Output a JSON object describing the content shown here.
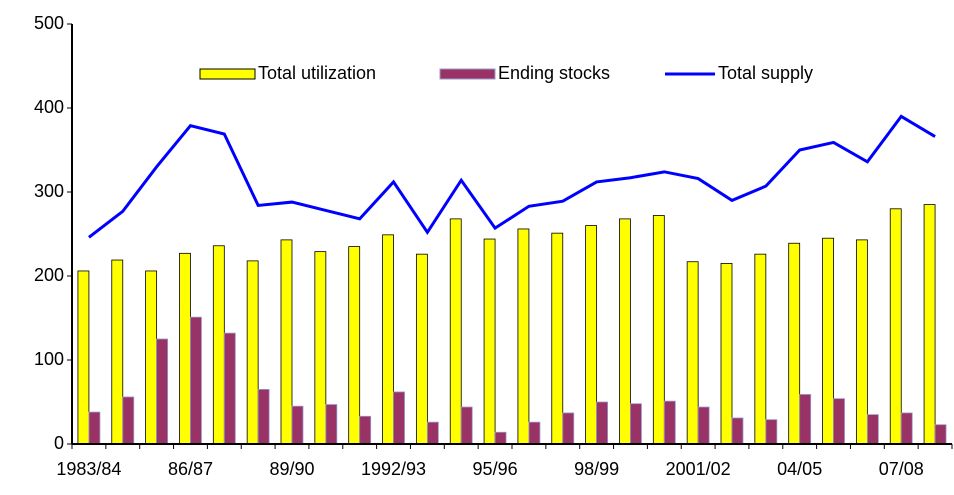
{
  "chart_data": {
    "type": "bar-line",
    "categories": [
      "1983/84",
      null,
      null,
      "86/87",
      null,
      null,
      "89/90",
      null,
      null,
      "1992/93",
      null,
      null,
      "95/96",
      null,
      null,
      "98/99",
      null,
      null,
      "2001/02",
      null,
      null,
      "04/05",
      null,
      null,
      "07/08",
      null
    ],
    "series": [
      {
        "name": "Total utilization",
        "type": "bar",
        "color": "#ffff00",
        "values": [
          206,
          219,
          206,
          227,
          236,
          218,
          243,
          229,
          235,
          249,
          226,
          268,
          244,
          256,
          251,
          260,
          268,
          272,
          217,
          215,
          226,
          239,
          245,
          243,
          280,
          285
        ]
      },
      {
        "name": "Ending stocks",
        "type": "bar",
        "color": "#993366",
        "values": [
          38,
          56,
          125,
          151,
          132,
          65,
          45,
          47,
          33,
          62,
          26,
          44,
          14,
          26,
          37,
          50,
          48,
          51,
          44,
          31,
          29,
          59,
          54,
          35,
          37,
          23
        ]
      },
      {
        "name": "Total supply",
        "type": "line",
        "color": "#0000ff",
        "values": [
          246,
          277,
          330,
          379,
          369,
          284,
          288,
          278,
          268,
          312,
          252,
          314,
          257,
          283,
          289,
          312,
          317,
          324,
          316,
          290,
          307,
          350,
          359,
          336,
          390,
          366
        ]
      }
    ],
    "ylim": [
      0,
      500
    ],
    "yticks": [
      0,
      100,
      200,
      300,
      400,
      500
    ],
    "grid": false,
    "legend": "top"
  }
}
